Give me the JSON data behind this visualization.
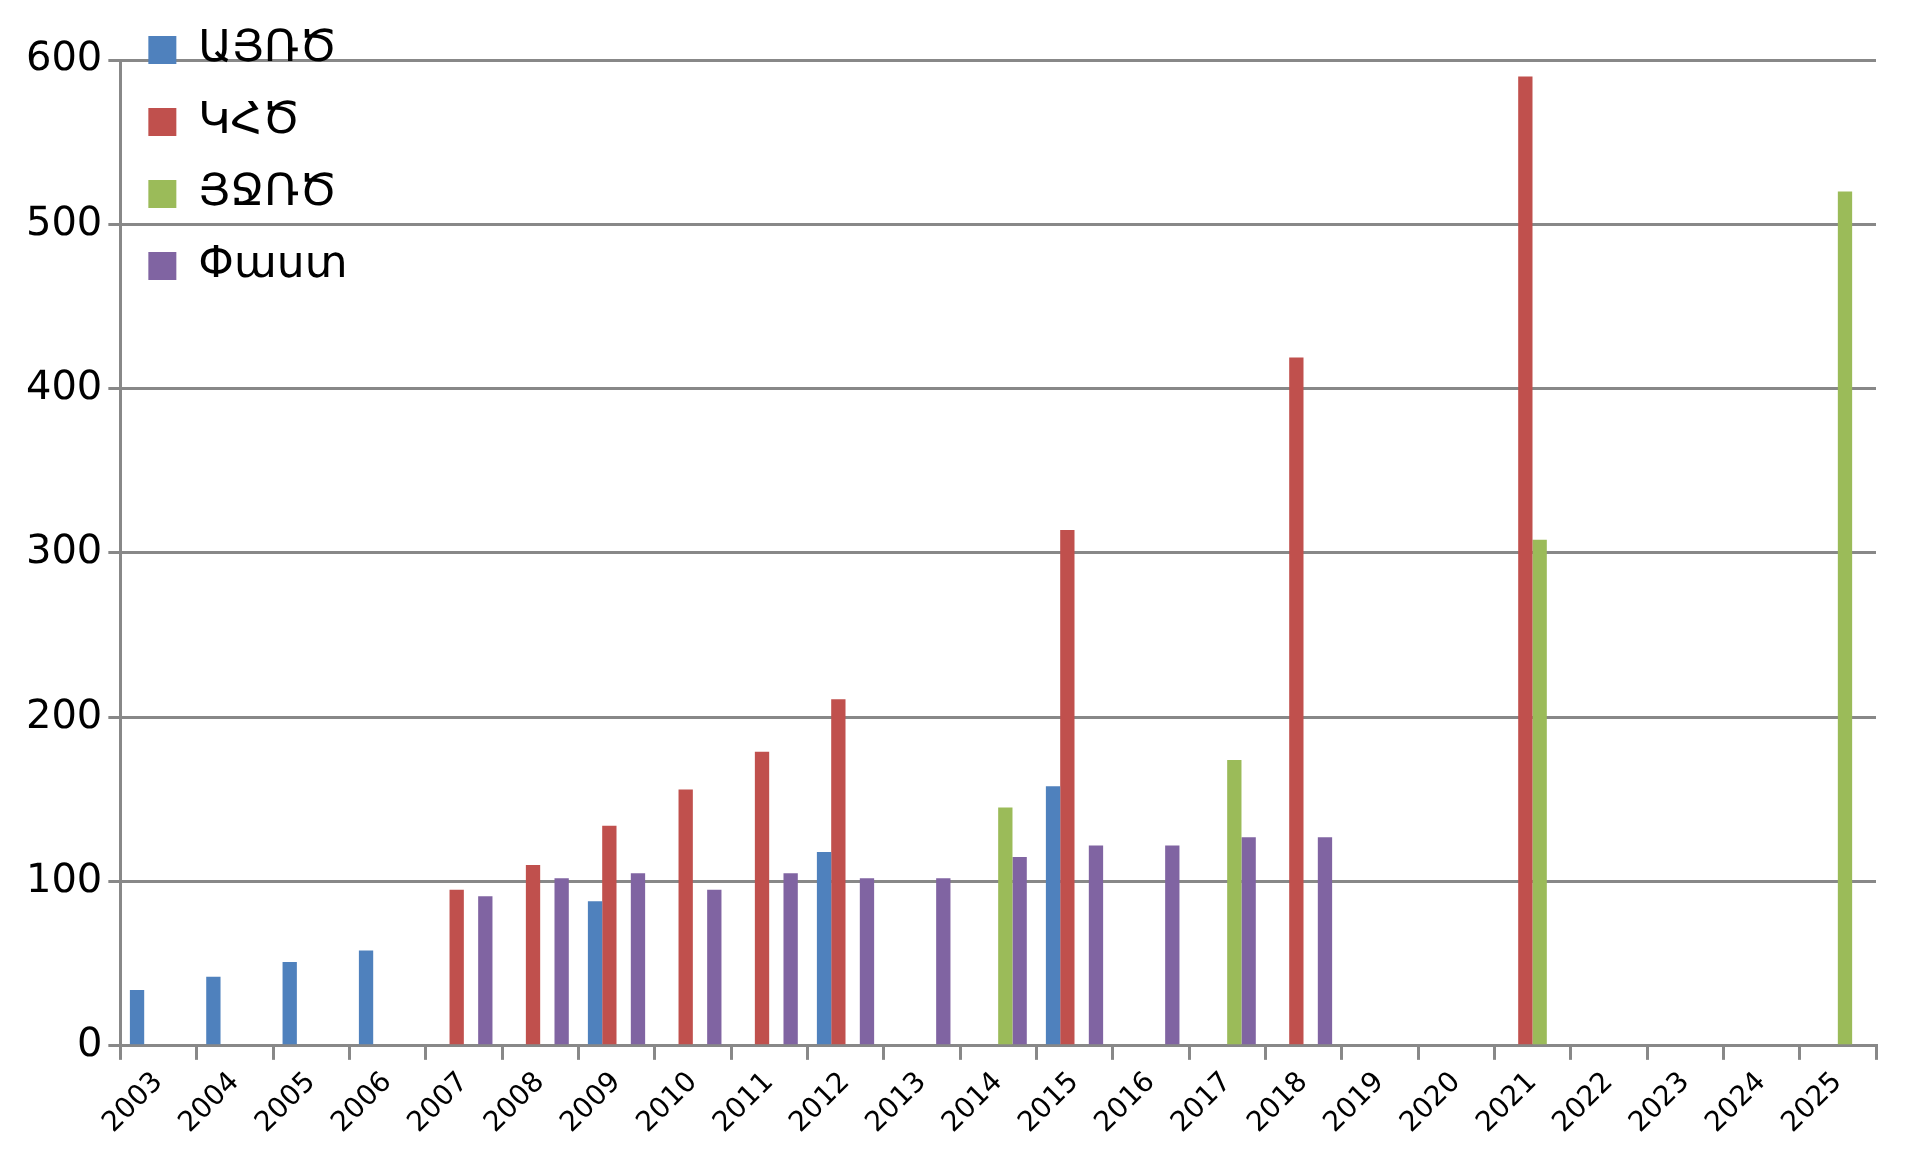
{
  "chart_data": {
    "type": "bar",
    "categories": [
      "2003",
      "2004",
      "2005",
      "2006",
      "2007",
      "2008",
      "2009",
      "2010",
      "2011",
      "2012",
      "2013",
      "2014",
      "2015",
      "2016",
      "2017",
      "2018",
      "2019",
      "2020",
      "2021",
      "2022",
      "2023",
      "2024",
      "2025"
    ],
    "series": [
      {
        "name": "ԱՅՌԾ",
        "color": "#4f81bd",
        "values": [
          34,
          42,
          51,
          58,
          null,
          null,
          88,
          null,
          null,
          118,
          null,
          null,
          158,
          null,
          null,
          null,
          null,
          null,
          null,
          null,
          null,
          null,
          null
        ]
      },
      {
        "name": "ԿՀԾ",
        "color": "#c0504d",
        "values": [
          null,
          null,
          null,
          null,
          95,
          110,
          134,
          156,
          179,
          211,
          null,
          null,
          314,
          null,
          null,
          419,
          null,
          null,
          590,
          null,
          null,
          null,
          null
        ]
      },
      {
        "name": "ՅՋՌԾ",
        "color": "#9bbb59",
        "values": [
          null,
          null,
          null,
          null,
          null,
          null,
          null,
          null,
          null,
          null,
          null,
          145,
          null,
          null,
          174,
          null,
          null,
          null,
          308,
          null,
          null,
          null,
          520
        ]
      },
      {
        "name": "Փաստ",
        "color": "#8064a2",
        "values": [
          null,
          null,
          null,
          null,
          91,
          102,
          105,
          95,
          105,
          102,
          102,
          115,
          122,
          122,
          127,
          127,
          null,
          null,
          null,
          null,
          null,
          null,
          null
        ]
      }
    ],
    "ylim": [
      0,
      600
    ],
    "yticks": [
      0,
      100,
      200,
      300,
      400,
      500,
      600
    ],
    "grid": "y",
    "legend": "top left"
  }
}
